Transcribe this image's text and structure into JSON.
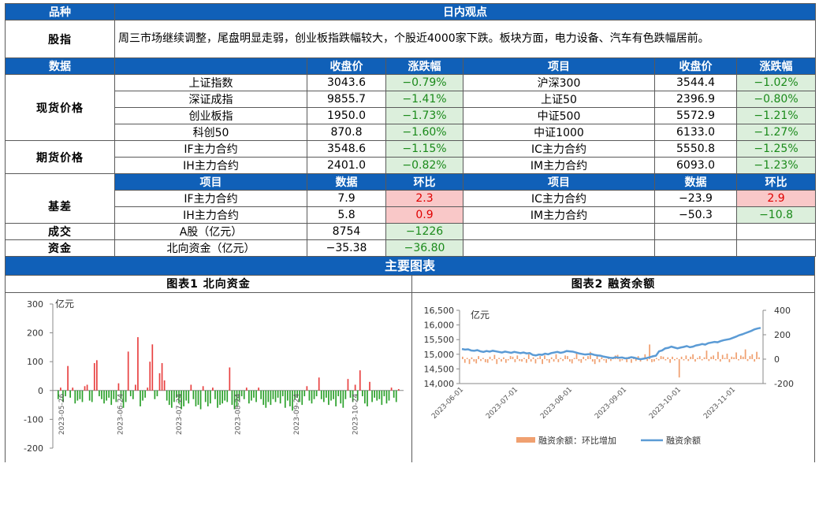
{
  "header": {
    "col1": "品种",
    "col2": "日内观点"
  },
  "stock_index": {
    "label": "股指",
    "text": "周三市场继续调整，尾盘明显走弱，创业板指跌幅较大，个股近4000家下跌。板块方面，电力设备、汽车有色跌幅居前。"
  },
  "data_header": {
    "label": "数据",
    "close": "收盘价",
    "change": "涨跌幅",
    "item": "项目",
    "close2": "收盘价",
    "change2": "涨跌幅"
  },
  "spot": {
    "label": "现货价格",
    "rows": [
      {
        "name": "上证指数",
        "close": "3043.6",
        "chg": "−0.79%",
        "name2": "沪深300",
        "close2": "3544.4",
        "chg2": "−1.02%"
      },
      {
        "name": "深证成指",
        "close": "9855.7",
        "chg": "−1.41%",
        "name2": "上证50",
        "close2": "2396.9",
        "chg2": "−0.80%"
      },
      {
        "name": "创业板指",
        "close": "1950.0",
        "chg": "−1.73%",
        "name2": "中证500",
        "close2": "5572.9",
        "chg2": "−1.21%"
      },
      {
        "name": "科创50",
        "close": "870.8",
        "chg": "−1.60%",
        "name2": "中证1000",
        "close2": "6133.0",
        "chg2": "−1.27%"
      }
    ]
  },
  "futures": {
    "label": "期货价格",
    "rows": [
      {
        "name": "IF主力合约",
        "close": "3548.6",
        "chg": "−1.15%",
        "name2": "IC主力合约",
        "close2": "5550.8",
        "chg2": "−1.25%"
      },
      {
        "name": "IH主力合约",
        "close": "2401.0",
        "chg": "−0.82%",
        "name2": "IM主力合约",
        "close2": "6093.0",
        "chg2": "−1.23%"
      }
    ]
  },
  "sub_header": {
    "item": "项目",
    "data": "数据",
    "mom": "环比",
    "item2": "项目",
    "data2": "数据",
    "mom2": "环比"
  },
  "basis": {
    "label": "基差",
    "rows": [
      {
        "name": "IF主力合约",
        "val": "7.9",
        "mom": "2.3",
        "name2": "IC主力合约",
        "val2": "−23.9",
        "mom2": "2.9"
      },
      {
        "name": "IH主力合约",
        "val": "5.8",
        "mom": "0.9",
        "name2": "IM主力合约",
        "val2": "−50.3",
        "mom2": "−10.8"
      }
    ]
  },
  "volume": {
    "label": "成交",
    "name": "A股（亿元）",
    "val": "8754",
    "mom": "−1226"
  },
  "capital": {
    "label": "资金",
    "name": "北向资金（亿元）",
    "val": "−35.38",
    "mom": "−36.80"
  },
  "section_title": "主要图表",
  "colors": {
    "header_blue": "#1060b8",
    "up_red": "#e84040",
    "down_green": "#2aa02a",
    "bar_orange": "#f0a070",
    "line_blue": "#5b9bd5"
  },
  "chart_data": [
    {
      "type": "bar",
      "title": "图表1 北向资金",
      "ylabel": "亿元",
      "ylim": [
        -200,
        300
      ],
      "yticks": [
        "300",
        "200",
        "100",
        "0",
        "-100",
        "-200"
      ],
      "x_ticks": [
        "2023-05-26",
        "2023-06-24",
        "2023-07-24",
        "2023-08-24",
        "2023-09-24",
        "2023-10-24"
      ],
      "values": [
        -30,
        10,
        -40,
        -20,
        85,
        -25,
        10,
        -45,
        -35,
        -30,
        -40,
        15,
        20,
        -35,
        -40,
        95,
        105,
        -20,
        -30,
        -45,
        -35,
        -25,
        -50,
        -30,
        -40,
        25,
        -30,
        -60,
        -40,
        135,
        -20,
        -30,
        20,
        185,
        -55,
        -35,
        -25,
        10,
        100,
        160,
        -30,
        -20,
        60,
        95,
        35,
        -35,
        -50,
        -60,
        -40,
        -25,
        -45,
        -65,
        -55,
        -35,
        -45,
        20,
        -30,
        -55,
        -50,
        -65,
        15,
        -40,
        -55,
        -45,
        10,
        -30,
        -60,
        -50,
        -45,
        -35,
        -40,
        80,
        -50,
        -65,
        -55,
        -35,
        -20,
        -30,
        10,
        -45,
        -35,
        -25,
        -40,
        10,
        -30,
        -50,
        -60,
        -40,
        -50,
        -30,
        -40,
        -25,
        -45,
        -20,
        -60,
        -35,
        -55,
        -70,
        -30,
        -25,
        -40,
        -50,
        -20,
        15,
        -35,
        -45,
        -30,
        -20,
        45,
        -30,
        -40,
        -25,
        -50,
        -35,
        -30,
        -55,
        -20,
        -45,
        -60,
        -30,
        40,
        -25,
        -40,
        20,
        -35,
        70,
        -20,
        -45,
        -55,
        30,
        -40,
        -25,
        -35,
        -30,
        -50,
        -20,
        -45,
        -35,
        10,
        -25,
        -40,
        5
      ]
    },
    {
      "type": "line+bar",
      "title": "图表2 融资余额",
      "ylabel": "亿元",
      "ylim_left": [
        14000,
        16500
      ],
      "yticks_left": [
        "16,500",
        "16,000",
        "15,500",
        "15,000",
        "14,500",
        "14,000"
      ],
      "ylim_right": [
        -200,
        400
      ],
      "yticks_right": [
        "400",
        "200",
        "0",
        "-200"
      ],
      "x_ticks": [
        "2023-06-01",
        "2023-07-01",
        "2023-08-01",
        "2023-09-01",
        "2023-10-01",
        "2023-11-01"
      ],
      "series": [
        {
          "name": "融资余额：环比增加",
          "type": "bar",
          "axis": "right",
          "values": [
            20,
            -30,
            10,
            -40,
            15,
            -20,
            -35,
            25,
            -15,
            10,
            -25,
            -30,
            20,
            -10,
            35,
            -40,
            10,
            -20,
            15,
            -30,
            -10,
            25,
            20,
            -25,
            30,
            -15,
            -20,
            10,
            -30,
            40,
            -20,
            15,
            -35,
            10,
            25,
            -40,
            30,
            -10,
            -30,
            15,
            -20,
            40,
            -25,
            10,
            -15,
            30,
            25,
            -20,
            -35,
            10,
            50,
            -15,
            -30,
            20,
            -10,
            25,
            60,
            -20,
            -40,
            30,
            -25,
            15,
            -10,
            -30,
            20,
            -15,
            10,
            30,
            35,
            -20,
            -10,
            15,
            -25,
            20,
            -30,
            10,
            -15,
            25,
            -20,
            10,
            40,
            -15,
            120,
            -25,
            -20,
            10,
            -10,
            25,
            20,
            -10,
            15,
            -30,
            20,
            -10,
            10,
            -150,
            20,
            -10,
            30,
            -15,
            20,
            40,
            -20,
            10,
            25,
            -10,
            15,
            70,
            -15,
            20,
            30,
            -10,
            60,
            -20,
            35,
            10,
            45,
            -25,
            20,
            15,
            55,
            -10,
            30,
            20,
            80,
            -15,
            25,
            40,
            -20,
            60,
            15
          ]
        },
        {
          "name": "融资余额",
          "type": "line",
          "axis": "left",
          "values": [
            15180,
            15160,
            15170,
            15130,
            15120,
            15140,
            15100,
            15080,
            15110,
            15090,
            15120,
            15100,
            15080,
            15060,
            15090,
            15070,
            15050,
            15080,
            15060,
            15040,
            15060,
            15030,
            15040,
            14980,
            14960,
            14990,
            14980,
            15020,
            15000,
            15040,
            15060,
            15080,
            15050,
            15070,
            15110,
            15100,
            15090,
            15060,
            15030,
            15010,
            14990,
            15000,
            15010,
            14980,
            14960,
            14950,
            14920,
            14900,
            14880,
            14870,
            14900,
            14880,
            14890,
            14860,
            14870,
            14900,
            14880,
            14850,
            14830,
            14850,
            14870,
            14900,
            14930,
            14950,
            15100,
            15130,
            15200,
            15220,
            15260,
            15230,
            15200,
            15230,
            15250,
            15280,
            15240,
            15260,
            15300,
            15320,
            15350,
            15330,
            15380,
            15400,
            15420,
            15410,
            15450,
            15480,
            15500,
            15520,
            15560,
            15600,
            15650,
            15680,
            15720,
            15760,
            15800,
            15850,
            15880,
            15900
          ]
        }
      ]
    }
  ]
}
